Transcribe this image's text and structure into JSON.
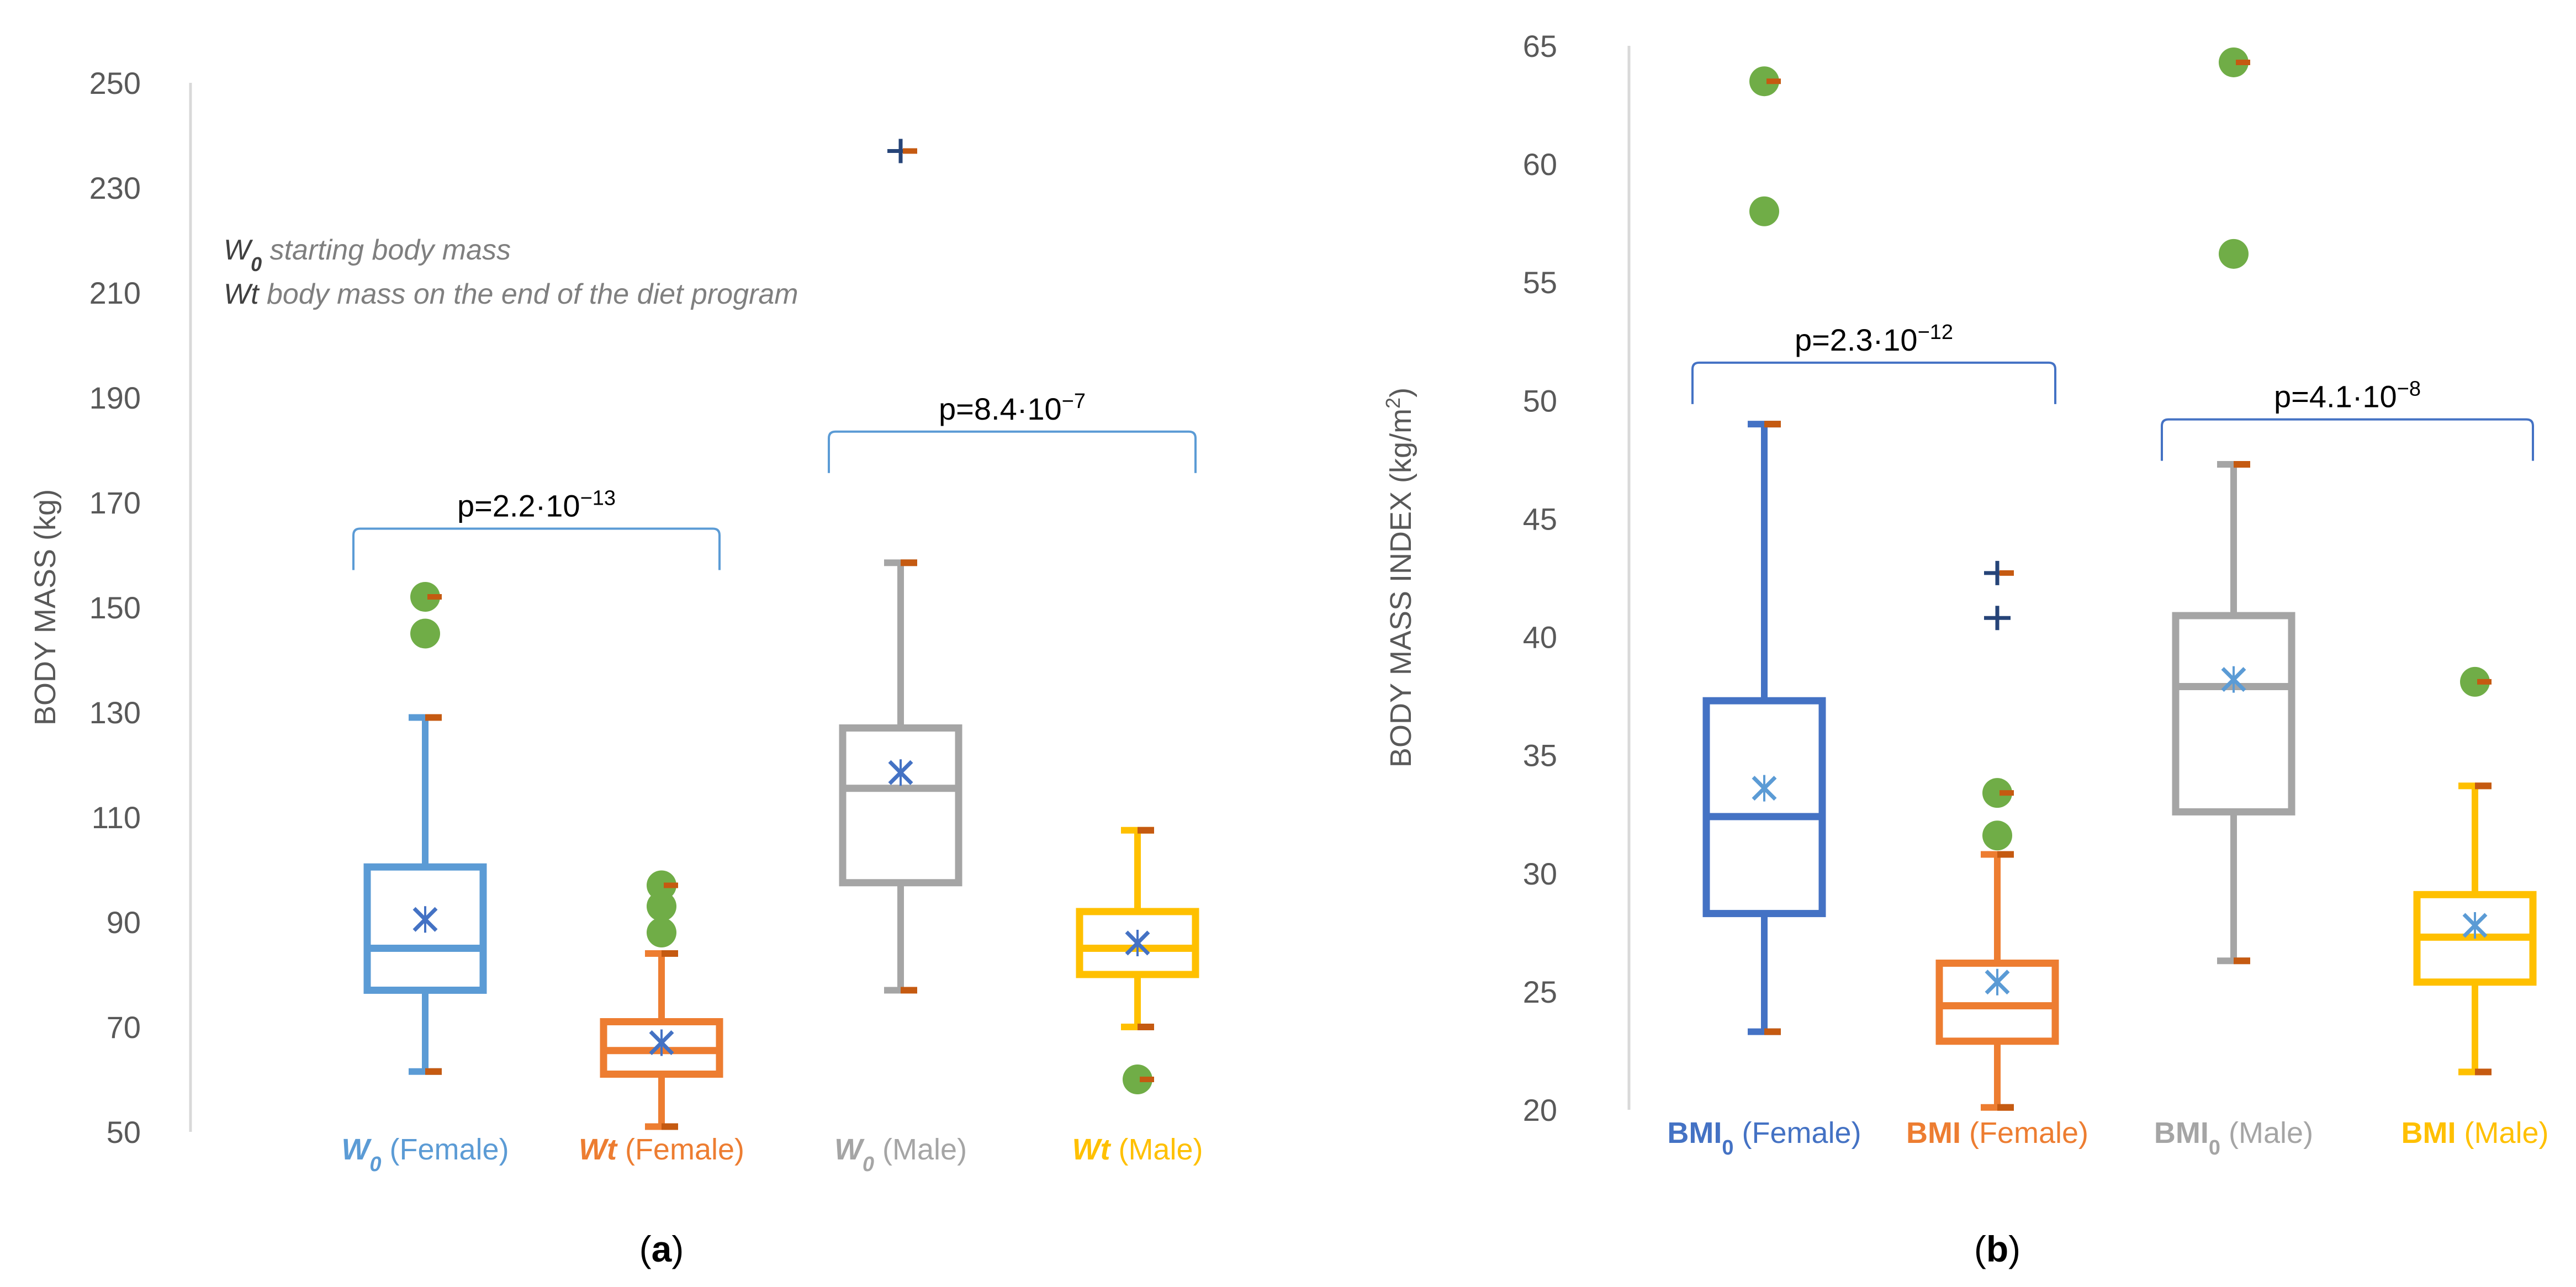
{
  "panels": [
    {
      "id": "a",
      "caption": "(a)",
      "ylabel": "BODY MASS (kg)",
      "ylim": [
        50,
        250
      ],
      "ticks": [
        50,
        70,
        90,
        110,
        130,
        150,
        170,
        190,
        210,
        230,
        250
      ],
      "legend_lines": [
        {
          "term": "W",
          "sub": "0",
          "text": " starting body mass"
        },
        {
          "term": "Wt",
          "sub": "",
          "text": " body mass on the end of the diet program"
        }
      ],
      "boxes": [
        {
          "label_bold": "W",
          "label_sub": "0",
          "label_rest": " (Female)",
          "italic": true,
          "sub_style": "sub",
          "color": "#5B9BD5",
          "min": 61.5,
          "q1": 77,
          "median": 85,
          "q3": 100.5,
          "max": 129,
          "mean": 90.5,
          "outliers": [
            145,
            152
          ],
          "extremes": []
        },
        {
          "label_bold": "Wt",
          "label_sub": "",
          "label_rest": " (Female)",
          "italic": true,
          "sub_style": "sub",
          "color": "#ED7D31",
          "min": 51,
          "q1": 61,
          "median": 65.5,
          "q3": 71,
          "max": 84,
          "mean": 67,
          "outliers": [
            88,
            93,
            97
          ],
          "extremes": []
        },
        {
          "label_bold": "W",
          "label_sub": "0",
          "label_rest": " (Male)",
          "italic": true,
          "sub_style": "sub",
          "color": "#A5A5A5",
          "min": 77,
          "q1": 97.5,
          "median": 115.5,
          "q3": 127,
          "max": 158.5,
          "mean": 118.5,
          "outliers": [],
          "extremes": [
            237
          ]
        },
        {
          "label_bold": "Wt",
          "label_sub": "",
          "label_rest": " (Male)",
          "italic": true,
          "sub_style": "sub",
          "color": "#FFC000",
          "min": 70,
          "q1": 80,
          "median": 85,
          "q3": 92,
          "max": 107.5,
          "mean": 86,
          "outliers": [
            60
          ],
          "extremes": []
        }
      ],
      "brackets": [
        {
          "from": 0,
          "to": 1,
          "y": 165,
          "text": "p=2.2·10",
          "exp": "−13"
        },
        {
          "from": 2,
          "to": 3,
          "y": 183.5,
          "text": "p=8.4·10",
          "exp": "−7"
        }
      ]
    },
    {
      "id": "b",
      "caption": "(b)",
      "ylabel": "BODY MASS INDEX (kg/m",
      "ylabel_sup": "2",
      "ylabel_end": ")",
      "ylim": [
        20,
        65
      ],
      "ticks": [
        20,
        25,
        30,
        35,
        40,
        45,
        50,
        55,
        60,
        65
      ],
      "legend_lines": [],
      "boxes": [
        {
          "label_bold": "BMI",
          "label_sub": "0",
          "label_rest": " (Female)",
          "italic": false,
          "sub_style": "sub",
          "color": "#4472C4",
          "min": 23.3,
          "q1": 28.3,
          "median": 32.4,
          "q3": 37.3,
          "max": 49,
          "mean": 33.6,
          "outliers": [
            58,
            63.5
          ],
          "extremes": []
        },
        {
          "label_bold": "BMI",
          "label_sub": "",
          "label_rest": " (Female)",
          "italic": false,
          "sub_style": "sub",
          "color": "#ED7D31",
          "min": 20.1,
          "q1": 22.9,
          "median": 24.4,
          "q3": 26.2,
          "max": 30.8,
          "mean": 25.4,
          "outliers": [
            31.6,
            33.4
          ],
          "extremes": [
            40.8,
            42.7
          ]
        },
        {
          "label_bold": "BMI",
          "label_sub": "0",
          "label_rest": " (Male)",
          "italic": false,
          "sub_style": "sub",
          "color": "#A5A5A5",
          "min": 26.3,
          "q1": 32.6,
          "median": 37.9,
          "q3": 40.9,
          "max": 47.3,
          "mean": 38.2,
          "outliers": [
            56.2,
            64.3
          ],
          "extremes": []
        },
        {
          "label_bold": "BMI",
          "label_sub": "",
          "label_rest": " (Male)",
          "italic": false,
          "sub_style": "sub",
          "color": "#FFC000",
          "min": 21.6,
          "q1": 25.4,
          "median": 27.3,
          "q3": 29.1,
          "max": 33.7,
          "mean": 27.8,
          "outliers": [
            38.1
          ],
          "extremes": []
        }
      ],
      "brackets": [
        {
          "from": 0,
          "to": 1,
          "y": 51.6,
          "text": "p=2.3·10",
          "exp": "−12"
        },
        {
          "from": 2,
          "to": 3,
          "y": 49.2,
          "text": "p=4.1·10",
          "exp": "−8"
        }
      ]
    }
  ],
  "chart_data": [
    {
      "type": "boxplot",
      "title": "",
      "xlabel": "",
      "ylabel": "BODY MASS (kg)",
      "ylim": [
        50,
        250
      ],
      "categories": [
        "W0 (Female)",
        "Wt (Female)",
        "W0 (Male)",
        "Wt (Male)"
      ],
      "annotations": [
        "W0 starting body mass",
        "Wt body mass on the end of the diet program",
        "p=2.2·10−13",
        "p=8.4·10−7"
      ]
    },
    {
      "type": "boxplot",
      "title": "",
      "xlabel": "",
      "ylabel": "BODY MASS INDEX (kg/m2)",
      "ylim": [
        20,
        65
      ],
      "categories": [
        "BMI0 (Female)",
        "BMI (Female)",
        "BMI0 (Male)",
        "BMI (Male)"
      ],
      "annotations": [
        "p=2.3·10−12",
        "p=4.1·10−8"
      ]
    }
  ]
}
